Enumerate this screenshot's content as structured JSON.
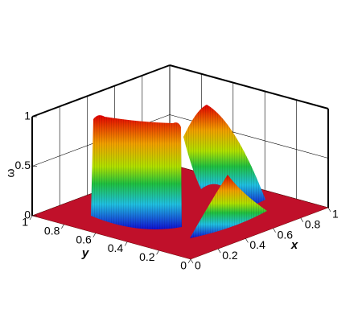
{
  "chart_data": {
    "type": "surface3d",
    "xlabel": "x",
    "ylabel": "y",
    "zlabel": "ω",
    "xlim": [
      0,
      1
    ],
    "ylim": [
      0,
      1
    ],
    "zlim": [
      0,
      1
    ],
    "xticks": [
      0,
      0.2,
      0.4,
      0.6,
      0.8,
      1
    ],
    "yticks": [
      0,
      0.2,
      0.4,
      0.6,
      0.8,
      1
    ],
    "zticks": [
      0,
      0.5,
      1
    ],
    "grid": true
  }
}
